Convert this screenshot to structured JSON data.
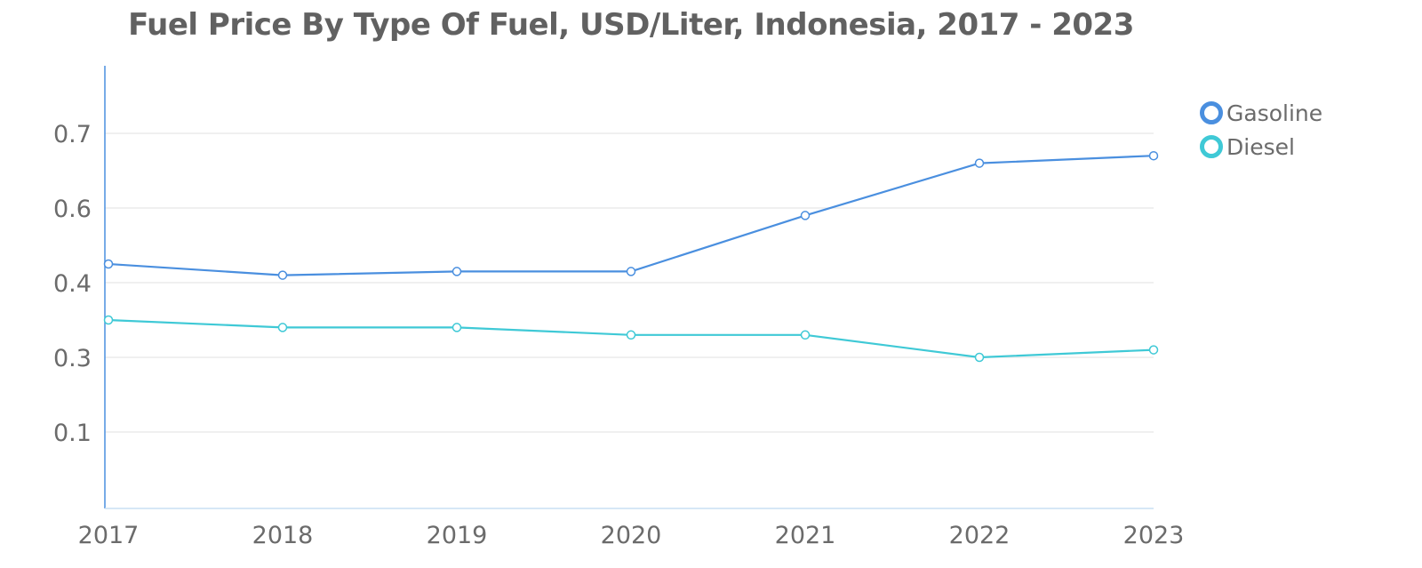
{
  "chart_data": {
    "type": "line",
    "title": "Fuel Price By Type Of Fuel, USD/Liter, Indonesia, 2017 - 2023",
    "xlabel": "",
    "ylabel": "",
    "x": [
      "2017",
      "2018",
      "2019",
      "2020",
      "2021",
      "2022",
      "2023"
    ],
    "y_ticks": [
      0.1,
      0.3,
      0.4,
      0.6,
      0.7
    ],
    "series": [
      {
        "name": "Gasoline",
        "color": "#4a8fdf",
        "values": [
          0.45,
          0.42,
          0.43,
          0.43,
          0.58,
          0.66,
          0.67
        ]
      },
      {
        "name": "Diesel",
        "color": "#3fc9d6",
        "values": [
          0.35,
          0.34,
          0.34,
          0.33,
          0.33,
          0.3,
          0.31
        ]
      }
    ],
    "grid": true,
    "legend": "top-right"
  }
}
